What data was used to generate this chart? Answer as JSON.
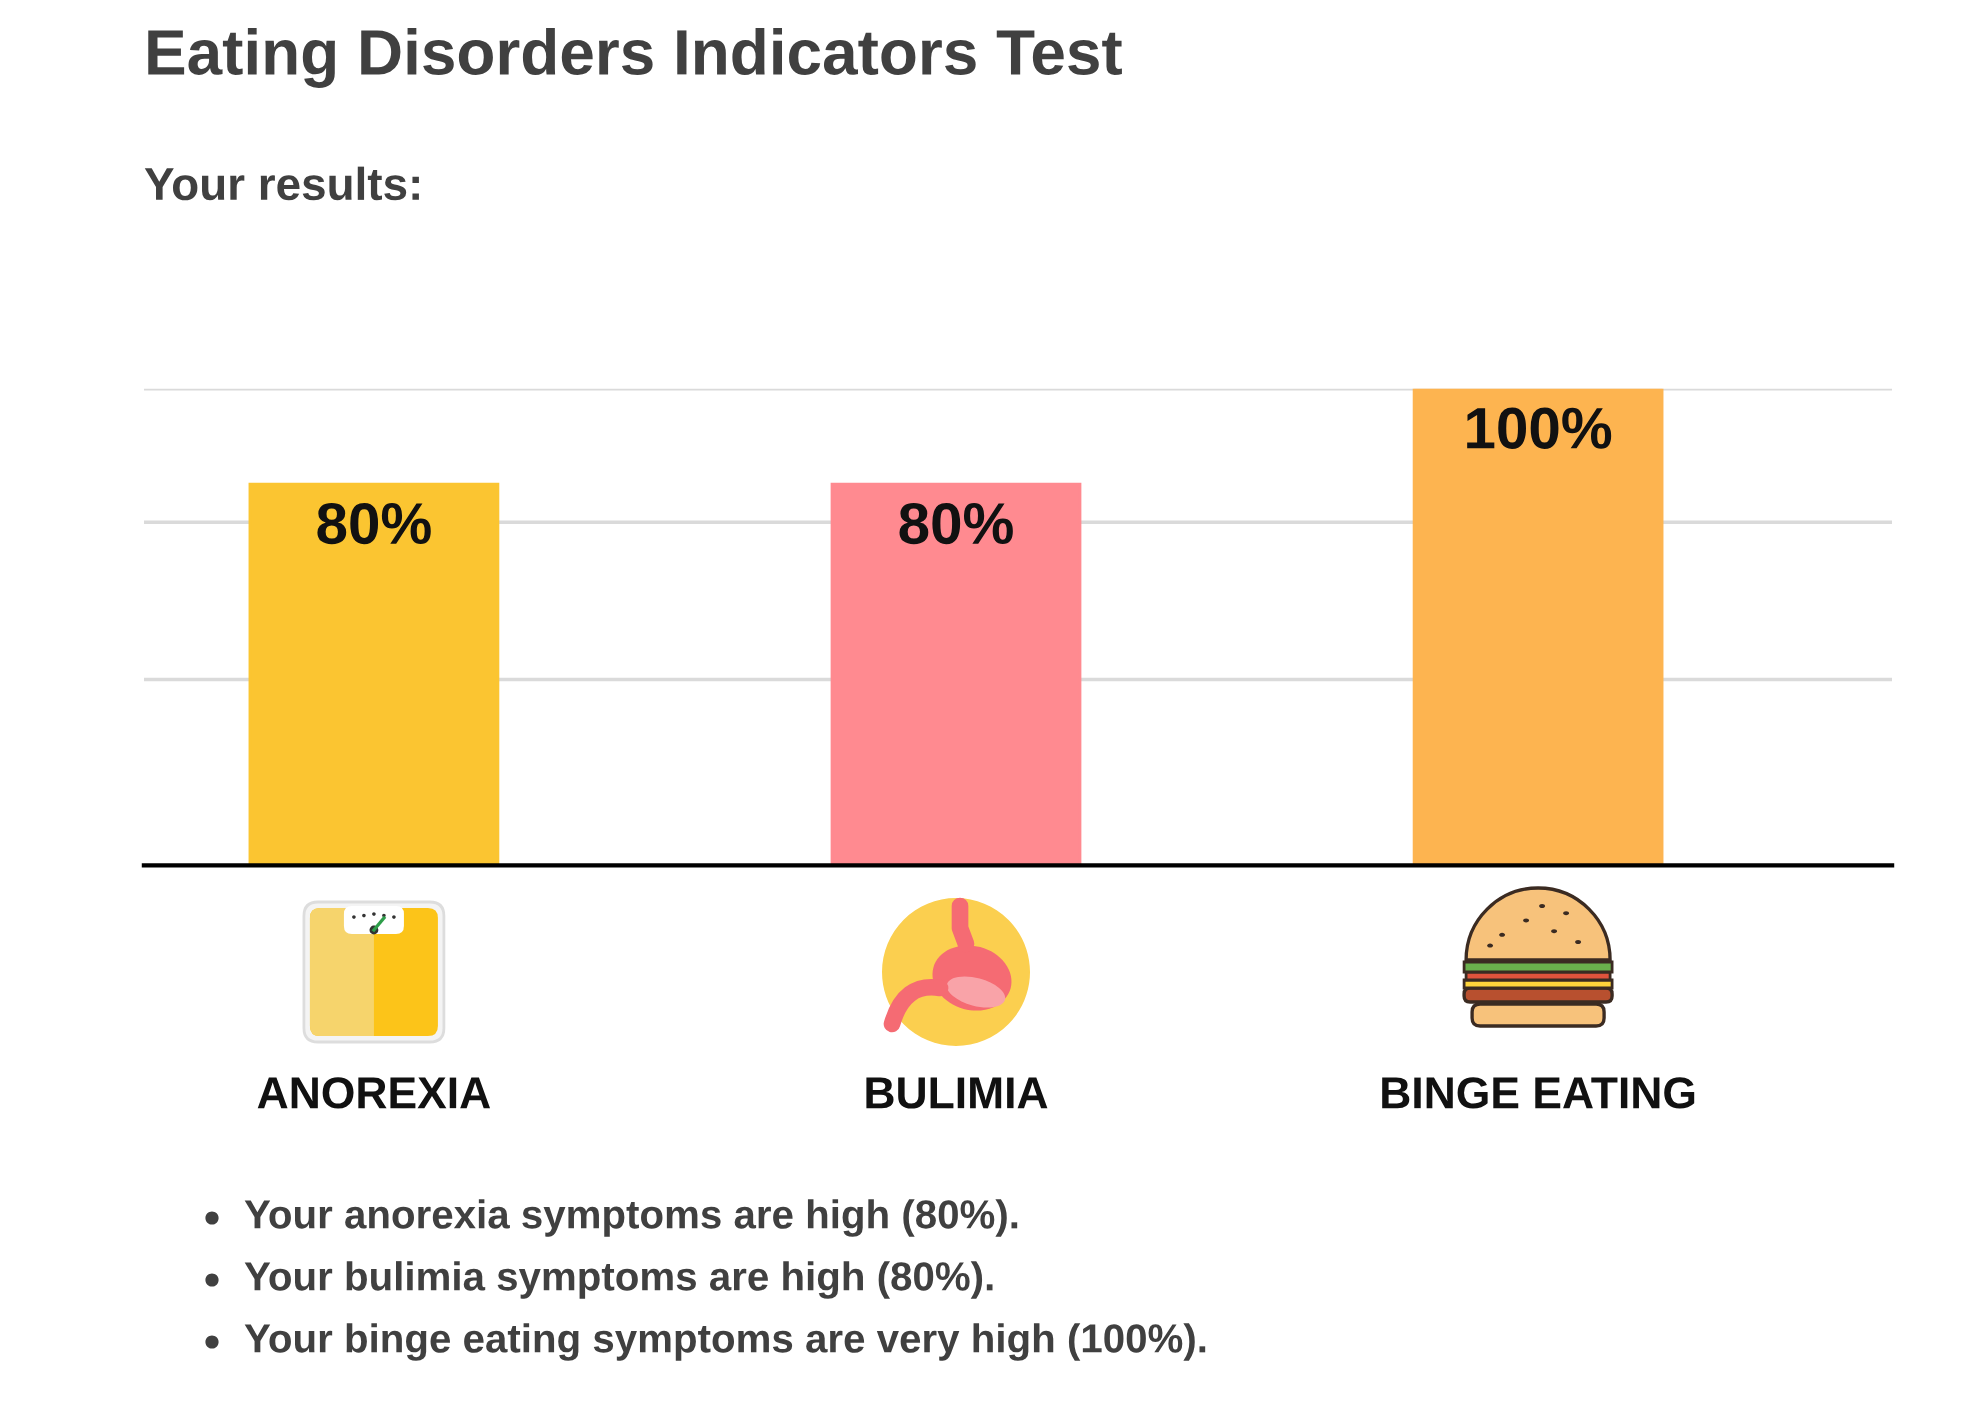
{
  "chart_data": {
    "type": "bar",
    "title": "Eating Disorders Indicators Test",
    "subtitle": "Your results:",
    "categories": [
      "ANOREXIA",
      "BULIMIA",
      "BINGE EATING"
    ],
    "values": [
      80,
      80,
      100
    ],
    "colors": [
      "#fbc531",
      "#ff8a90",
      "#fdb450"
    ],
    "value_labels": [
      "80%",
      "80%",
      "100%"
    ],
    "ylim": [
      0,
      100
    ],
    "yticks": [
      {
        "value": 39,
        "label": null
      },
      {
        "value": 72,
        "label": null
      },
      {
        "value": 100,
        "label": null
      }
    ],
    "grid": "y",
    "tick_labels": "x",
    "annotations": [
      "Your anorexia symptoms are high (80%).",
      "Your bulimia symptoms are high (80%).",
      "Your binge eating symptoms are very high (100%)."
    ]
  }
}
